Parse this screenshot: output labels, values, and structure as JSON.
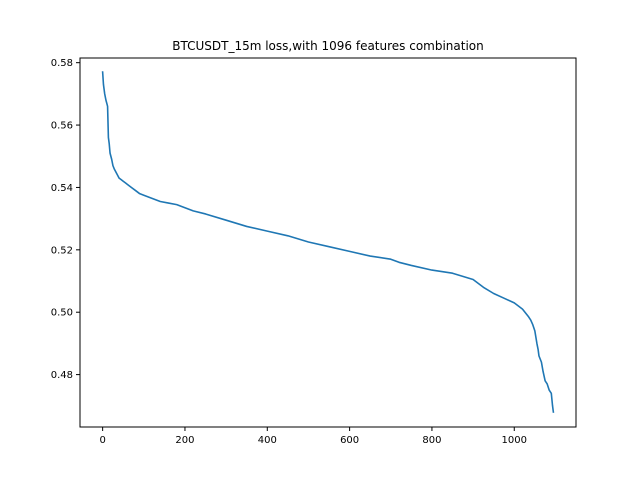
{
  "chart_data": {
    "type": "line",
    "title": "BTCUSDT_15m loss,with 1096 features combination",
    "xlabel": "",
    "ylabel": "",
    "xlim": [
      -55,
      1150
    ],
    "ylim": [
      0.4632,
      0.5815
    ],
    "x_ticks": [
      0,
      200,
      400,
      600,
      800,
      1000
    ],
    "x_tick_labels": [
      "0",
      "200",
      "400",
      "600",
      "800",
      "1000"
    ],
    "y_ticks": [
      0.48,
      0.5,
      0.52,
      0.54,
      0.56,
      0.58
    ],
    "y_tick_labels": [
      "0.48",
      "0.50",
      "0.52",
      "0.54",
      "0.56",
      "0.58"
    ],
    "grid": false,
    "colors": {
      "line": "#1f77b4",
      "axes": "#000000"
    },
    "series": [
      {
        "x": [
          0,
          2,
          5,
          8,
          10,
          12,
          14,
          16,
          18,
          20,
          22,
          25,
          28,
          32,
          36,
          40,
          45,
          50,
          55,
          60,
          70,
          80,
          90,
          100,
          120,
          140,
          160,
          180,
          200,
          220,
          250,
          300,
          350,
          400,
          450,
          500,
          550,
          600,
          650,
          700,
          720,
          750,
          800,
          850,
          900,
          925,
          950,
          975,
          1000,
          1020,
          1035,
          1040,
          1045,
          1050,
          1055,
          1058,
          1060,
          1063,
          1066,
          1070,
          1075,
          1080,
          1085,
          1090,
          1093,
          1095
        ],
        "y": [
          0.577,
          0.573,
          0.57,
          0.568,
          0.567,
          0.566,
          0.556,
          0.554,
          0.551,
          0.55,
          0.549,
          0.547,
          0.546,
          0.545,
          0.544,
          0.543,
          0.5425,
          0.542,
          0.5415,
          0.541,
          0.54,
          0.539,
          0.538,
          0.5375,
          0.5365,
          0.5355,
          0.535,
          0.5345,
          0.5335,
          0.5325,
          0.5315,
          0.5295,
          0.5275,
          0.526,
          0.5245,
          0.5225,
          0.521,
          0.5195,
          0.518,
          0.517,
          0.516,
          0.515,
          0.5135,
          0.5125,
          0.5105,
          0.508,
          0.506,
          0.5045,
          0.503,
          0.501,
          0.4985,
          0.4975,
          0.496,
          0.494,
          0.49,
          0.488,
          0.486,
          0.485,
          0.484,
          0.481,
          0.478,
          0.477,
          0.475,
          0.474,
          0.47,
          0.468
        ]
      }
    ]
  }
}
